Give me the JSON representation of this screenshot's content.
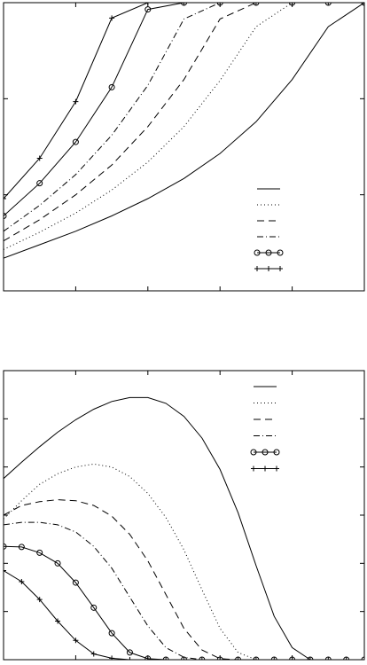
{
  "chart_data": [
    {
      "type": "line",
      "x": [
        0,
        1,
        2,
        3,
        4,
        5,
        6,
        7,
        8,
        9,
        10
      ],
      "xlim": [
        0,
        10
      ],
      "ylim": [
        0,
        3
      ],
      "grid": false,
      "legend_position": "bottom-right",
      "series": [
        {
          "style": "solid",
          "values": [
            0.34,
            0.48,
            0.62,
            0.78,
            0.96,
            1.17,
            1.43,
            1.76,
            2.2,
            2.75,
            3.0
          ]
        },
        {
          "style": "dotted",
          "values": [
            0.43,
            0.61,
            0.81,
            1.05,
            1.34,
            1.71,
            2.19,
            2.75,
            3.0,
            3.0,
            3.0
          ]
        },
        {
          "style": "dashed",
          "values": [
            0.52,
            0.74,
            1.0,
            1.31,
            1.71,
            2.2,
            2.83,
            3.0,
            3.0,
            3.0,
            3.0
          ]
        },
        {
          "style": "dashdot",
          "values": [
            0.62,
            0.89,
            1.21,
            1.62,
            2.14,
            2.83,
            3.0,
            3.0,
            3.0,
            3.0,
            3.0
          ]
        },
        {
          "style": "circles",
          "values": [
            0.78,
            1.12,
            1.55,
            2.12,
            2.93,
            3.0,
            3.0,
            3.0,
            3.0,
            3.0,
            3.0
          ]
        },
        {
          "style": "plus",
          "values": [
            0.96,
            1.38,
            1.97,
            2.84,
            3.0,
            3.0,
            3.0,
            3.0,
            3.0,
            3.0,
            3.0
          ]
        }
      ]
    },
    {
      "type": "line",
      "x": [
        0,
        0.5,
        1,
        1.5,
        2,
        2.5,
        3,
        3.5,
        4,
        4.5,
        5,
        5.5,
        6,
        6.5,
        7,
        7.5,
        8,
        8.5,
        9,
        9.5,
        10
      ],
      "xlim": [
        0,
        10
      ],
      "ylim": [
        0,
        6
      ],
      "grid": false,
      "legend_position": "top-right",
      "series": [
        {
          "style": "solid",
          "values": [
            3.76,
            4.1,
            4.42,
            4.72,
            4.98,
            5.2,
            5.36,
            5.44,
            5.44,
            5.32,
            5.05,
            4.6,
            3.95,
            3.05,
            1.95,
            0.9,
            0.25,
            0.0,
            0.0,
            0.0,
            0.0
          ]
        },
        {
          "style": "dotted",
          "values": [
            2.92,
            3.3,
            3.64,
            3.86,
            4.0,
            4.06,
            4.0,
            3.8,
            3.45,
            2.95,
            2.28,
            1.45,
            0.65,
            0.15,
            0.0,
            0.0,
            0.0,
            0.0,
            0.0,
            0.0,
            0.0
          ]
        },
        {
          "style": "dashed",
          "values": [
            3.0,
            3.2,
            3.28,
            3.32,
            3.3,
            3.2,
            2.98,
            2.6,
            2.05,
            1.35,
            0.65,
            0.2,
            0.02,
            0.0,
            0.0,
            0.0,
            0.0,
            0.0,
            0.0,
            0.0,
            0.0
          ]
        },
        {
          "style": "dashdot",
          "values": [
            2.8,
            2.85,
            2.85,
            2.8,
            2.65,
            2.35,
            1.9,
            1.3,
            0.7,
            0.25,
            0.05,
            0.0,
            0.0,
            0.0,
            0.0,
            0.0,
            0.0,
            0.0,
            0.0,
            0.0,
            0.0
          ]
        },
        {
          "style": "circles",
          "values": [
            2.35,
            2.34,
            2.22,
            2.0,
            1.6,
            1.08,
            0.55,
            0.15,
            0.02,
            0.0,
            0.0,
            0.0,
            0.0,
            0.0,
            0.0,
            0.0,
            0.0,
            0.0,
            0.0,
            0.0,
            0.0
          ]
        },
        {
          "style": "plus",
          "values": [
            1.85,
            1.62,
            1.25,
            0.8,
            0.4,
            0.12,
            0.03,
            0.0,
            0.0,
            0.0,
            0.0,
            0.0,
            0.0,
            0.0,
            0.0,
            0.0,
            0.0,
            0.0,
            0.0,
            0.0,
            0.0
          ]
        }
      ]
    }
  ]
}
